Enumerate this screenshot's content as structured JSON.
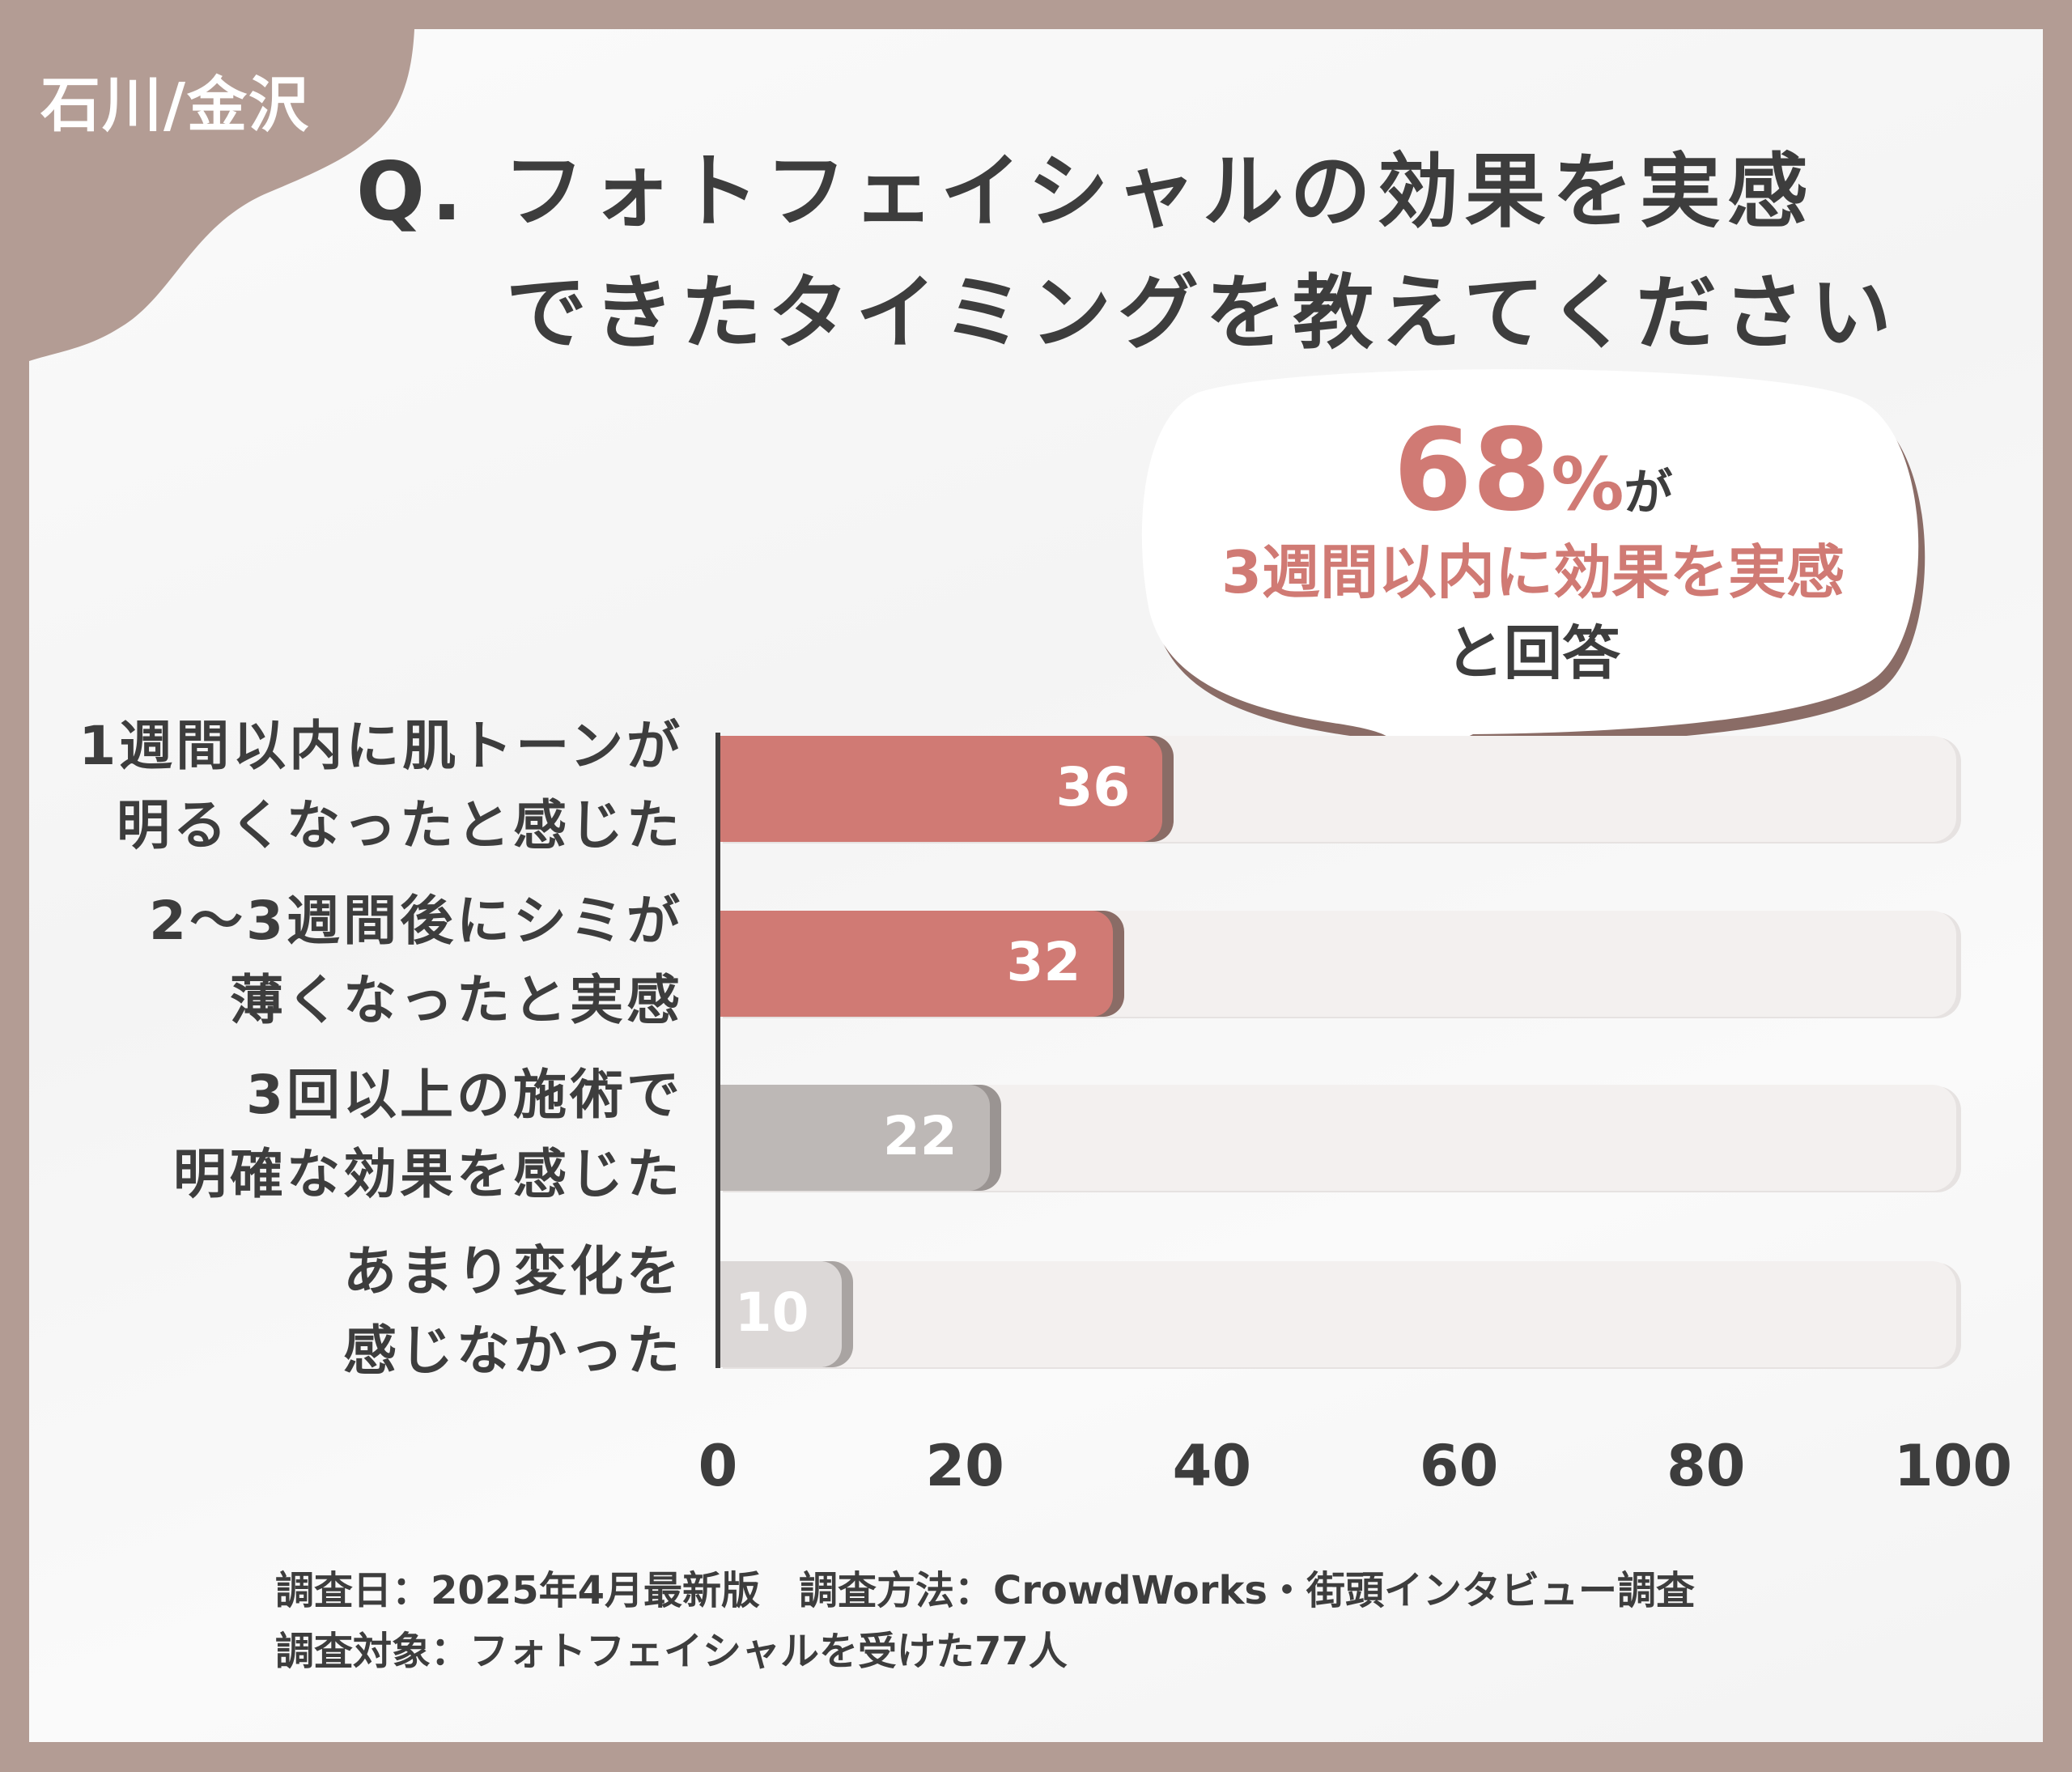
{
  "region": "石川/金沢",
  "title": {
    "line1": "Q. フォトフェイシャルの効果を実感",
    "line2": "できたタイミングを教えてください"
  },
  "callout": {
    "big": "68",
    "pct": "%",
    "suffix": "が",
    "line2": "3週間以内に効果を実感",
    "line3": "と回答"
  },
  "chart_data": {
    "type": "bar",
    "orientation": "horizontal",
    "categories": [
      [
        "1週間以内に肌トーンが",
        "明るくなったと感じた"
      ],
      [
        "2〜3週間後にシミが",
        "薄くなったと実感"
      ],
      [
        "3回以上の施術で",
        "明確な効果を感じた"
      ],
      [
        "あまり変化を",
        "感じなかった"
      ]
    ],
    "values": [
      36,
      32,
      22,
      10
    ],
    "value_labels": [
      "36",
      "32",
      "22",
      "10"
    ],
    "xlim": [
      0,
      100
    ],
    "xticks": [
      "0",
      "20",
      "40",
      "60",
      "80",
      "100"
    ],
    "grid": false,
    "colors": [
      "#d07a74",
      "#d07a74",
      "#bdb8b6",
      "#dcd8d7"
    ],
    "track_color": "#f3f0ef"
  },
  "footnote": {
    "line1": "調査日：2025年4月最新版　調査方法：CrowdWorks・街頭インタビュー調査",
    "line2": "調査対象：フォトフェイシャルを受けた77人"
  }
}
